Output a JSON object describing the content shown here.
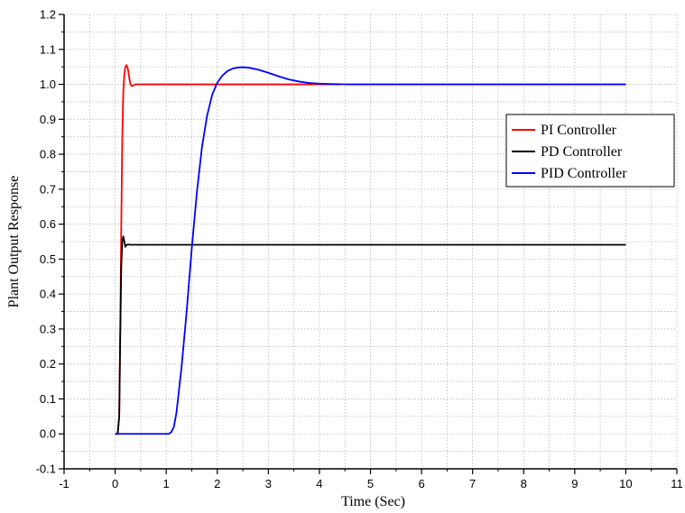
{
  "chart_data": {
    "type": "line",
    "xlabel": "Time (Sec)",
    "ylabel": "Plant Output Response",
    "xlim": [
      -1,
      11
    ],
    "ylim": [
      -0.1,
      1.2
    ],
    "xticks": [
      -1,
      0,
      1,
      2,
      3,
      4,
      5,
      6,
      7,
      8,
      9,
      10,
      11
    ],
    "yticks": [
      -0.1,
      0.0,
      0.1,
      0.2,
      0.3,
      0.4,
      0.5,
      0.6,
      0.7,
      0.8,
      0.9,
      1.0,
      1.1,
      1.2
    ],
    "grid": true,
    "legend_position": "right",
    "series": [
      {
        "name": "PI Controller",
        "color": "#ff0000",
        "x": [
          0.0,
          0.05,
          0.08,
          0.1,
          0.12,
          0.14,
          0.16,
          0.18,
          0.2,
          0.22,
          0.24,
          0.26,
          0.28,
          0.3,
          0.33,
          0.36,
          0.4,
          0.45,
          0.5,
          1.0,
          2.0,
          3.0,
          4.0,
          4.4
        ],
        "y": [
          0.0,
          0.0,
          0.05,
          0.3,
          0.6,
          0.85,
          0.98,
          1.03,
          1.05,
          1.055,
          1.05,
          1.035,
          1.015,
          1.0,
          0.995,
          0.997,
          1.0,
          1.0,
          1.0,
          1.0,
          1.0,
          1.0,
          1.0,
          1.0
        ]
      },
      {
        "name": "PD Controller",
        "color": "#000000",
        "x": [
          0.0,
          0.05,
          0.08,
          0.1,
          0.12,
          0.14,
          0.16,
          0.18,
          0.2,
          0.22,
          0.25,
          0.3,
          0.4,
          1.0,
          5.0,
          10.0
        ],
        "y": [
          0.0,
          0.0,
          0.05,
          0.28,
          0.48,
          0.55,
          0.565,
          0.55,
          0.535,
          0.54,
          0.542,
          0.541,
          0.541,
          0.541,
          0.541,
          0.541
        ],
        "y_note": ""
      },
      {
        "name": "PID Controller",
        "color": "#0000ff",
        "x": [
          0.0,
          0.5,
          1.0,
          1.05,
          1.1,
          1.15,
          1.2,
          1.3,
          1.4,
          1.5,
          1.6,
          1.7,
          1.8,
          1.9,
          2.0,
          2.1,
          2.2,
          2.3,
          2.4,
          2.5,
          2.6,
          2.8,
          3.0,
          3.2,
          3.4,
          3.6,
          3.8,
          4.0,
          4.2,
          4.5,
          5.0,
          6.0,
          7.0,
          8.0,
          9.0,
          10.0
        ],
        "y": [
          0.0,
          0.0,
          0.0,
          0.0,
          0.005,
          0.02,
          0.06,
          0.19,
          0.35,
          0.53,
          0.69,
          0.82,
          0.91,
          0.97,
          1.005,
          1.025,
          1.038,
          1.045,
          1.048,
          1.049,
          1.048,
          1.042,
          1.033,
          1.023,
          1.014,
          1.008,
          1.004,
          1.002,
          1.001,
          1.0,
          1.0,
          1.0,
          1.0,
          1.0,
          1.0,
          1.0
        ]
      }
    ]
  }
}
